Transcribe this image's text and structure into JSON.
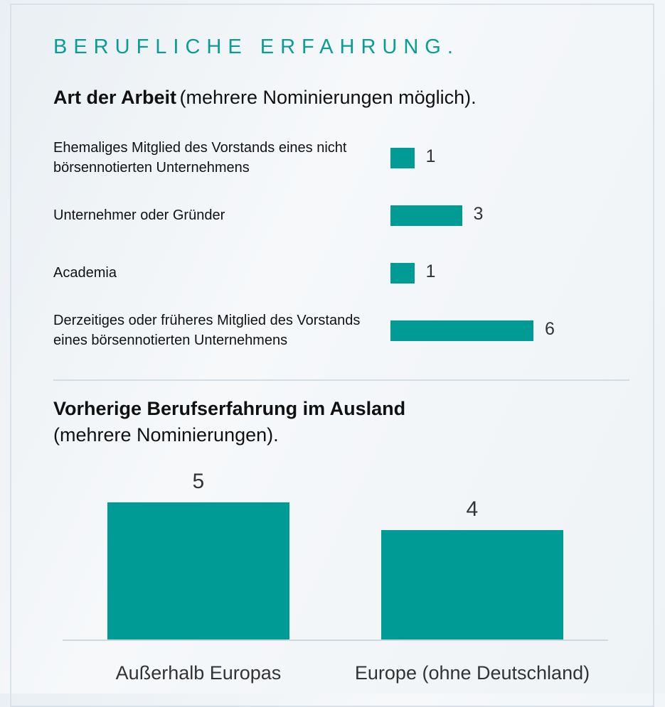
{
  "heading": "BERUFLICHE ERFAHRUNG.",
  "chart_data": [
    {
      "type": "hbar",
      "title": "Art der Arbeit",
      "subtitle": "(mehrere Nominierungen möglich).",
      "categories": [
        "Ehemaliges Mitglied des Vorstands eines nicht börsennotierten Unternehmens",
        "Unternehmer oder Gründer",
        "Academia",
        "Derzeitiges oder früheres Mitglied des Vorstands eines börsennotierten Unternehmens"
      ],
      "values": [
        1,
        3,
        1,
        6
      ],
      "color": "#009b94"
    },
    {
      "type": "bar",
      "title": "Vorherige Berufserfahrung im Ausland",
      "subtitle": "(mehrere Nominierungen).",
      "categories": [
        "Außerhalb Europas",
        "Europe (ohne Deutschland)"
      ],
      "values": [
        5,
        4
      ],
      "color": "#009b94"
    }
  ]
}
